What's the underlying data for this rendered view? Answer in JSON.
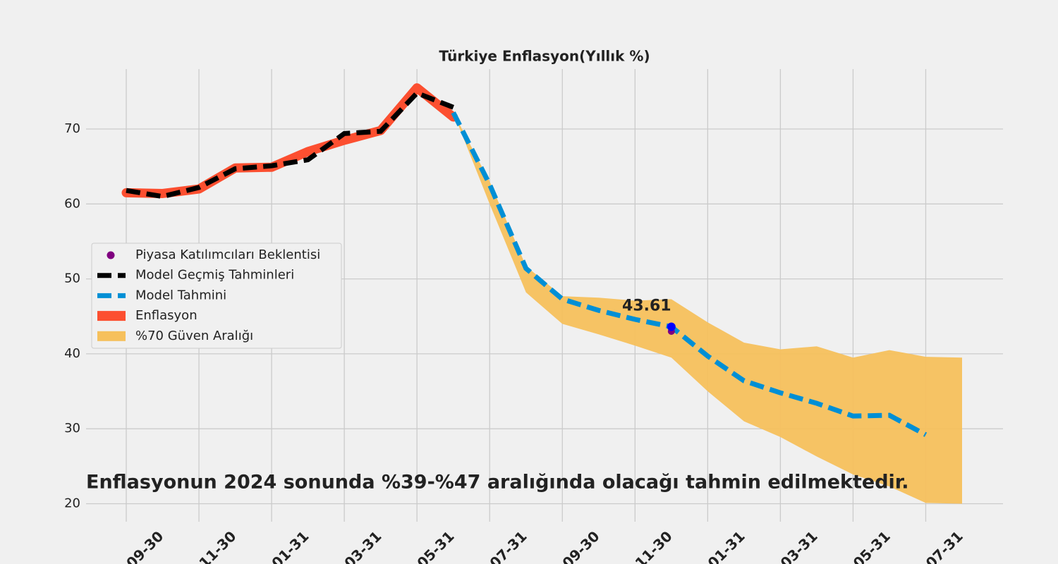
{
  "chart_data": {
    "type": "line",
    "title": "Türkiye Enflasyon(Yıllık %)",
    "note": "Enflasyonun 2024 sonunda %39-%47 aralığında olacağı tahmin edilmektedir.",
    "categories": [
      "09-30",
      null,
      "11-30",
      null,
      "01-31",
      null,
      "03-31",
      null,
      "05-31",
      null,
      "07-31",
      null,
      "09-30",
      null,
      "11-30",
      null,
      "01-31",
      null,
      "03-31",
      null,
      "05-31",
      null,
      "07-31",
      null
    ],
    "ylim": [
      17.6,
      78
    ],
    "yticks": [
      20,
      30,
      40,
      50,
      60,
      70
    ],
    "grid": true,
    "legend": "left",
    "series": [
      {
        "name": "Piyasa Katılımcıları Beklentisi",
        "color": "#800080",
        "kind": "scatter",
        "values": [
          null,
          null,
          null,
          null,
          null,
          null,
          null,
          null,
          null,
          null,
          null,
          null,
          null,
          null,
          null,
          43.0,
          null,
          null,
          null,
          null,
          null,
          null,
          null,
          null
        ]
      },
      {
        "name": "Model Geçmiş Tahminleri",
        "color": "#000000",
        "kind": "dashed",
        "values": [
          61.8,
          61.0,
          62.2,
          64.7,
          65.1,
          65.9,
          69.4,
          69.7,
          74.8,
          72.9,
          null,
          null,
          null,
          null,
          null,
          null,
          null,
          null,
          null,
          null,
          null,
          null,
          null,
          null
        ]
      },
      {
        "name": "Model Tahmini",
        "color": "#008fd5",
        "kind": "dashed",
        "values": [
          null,
          null,
          null,
          null,
          null,
          null,
          null,
          null,
          null,
          72.2,
          62.6,
          51.4,
          47.3,
          45.8,
          44.6,
          43.61,
          39.7,
          36.4,
          34.8,
          33.4,
          31.7,
          31.8,
          29.2,
          null
        ]
      },
      {
        "name": "Enflasyon",
        "color": "#fc4f30",
        "kind": "thick",
        "values": [
          61.5,
          61.4,
          62.0,
          64.8,
          64.9,
          67.0,
          68.5,
          69.8,
          75.5,
          71.6,
          null,
          null,
          null,
          null,
          null,
          null,
          null,
          null,
          null,
          null,
          null,
          null,
          null,
          null
        ]
      },
      {
        "name": "%70 Güven Aralığı",
        "color": "#f6c05c",
        "kind": "band",
        "upper": [
          null,
          null,
          null,
          null,
          null,
          null,
          null,
          null,
          null,
          72.2,
          63.0,
          51.7,
          47.7,
          47.5,
          47.1,
          47.3,
          44.2,
          41.5,
          40.6,
          41.0,
          39.5,
          40.5,
          39.6,
          39.5
        ],
        "lower": [
          null,
          null,
          null,
          null,
          null,
          null,
          null,
          null,
          null,
          72.2,
          60.0,
          48.2,
          44.0,
          42.6,
          41.1,
          39.5,
          35.0,
          31.0,
          28.9,
          26.3,
          23.9,
          22.3,
          20.1,
          20.0
        ]
      }
    ],
    "highlight": {
      "index": 15,
      "value": 43.61,
      "color": "#0000ff"
    }
  }
}
